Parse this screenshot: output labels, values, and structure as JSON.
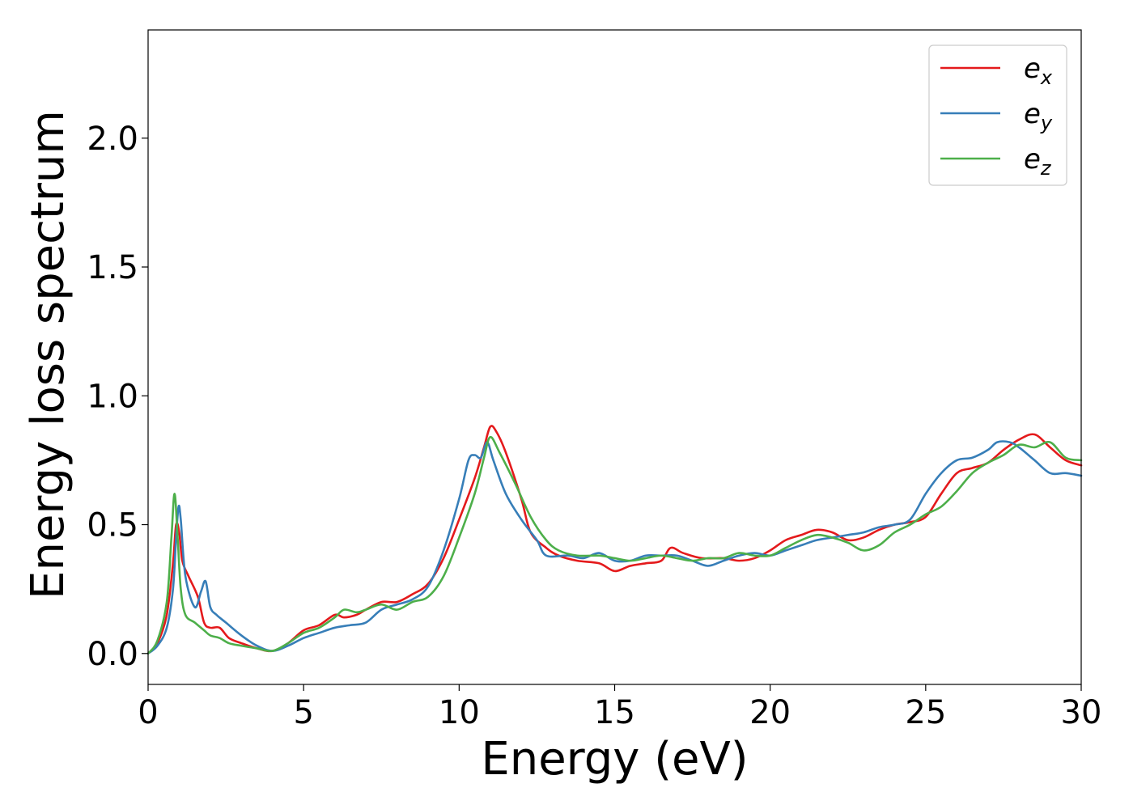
{
  "chart_data": {
    "type": "line",
    "xlabel": "Energy (eV)",
    "ylabel": "Energy loss spectrum",
    "xlim": [
      0,
      30
    ],
    "ylim": [
      -0.12,
      2.42
    ],
    "xticks": [
      0,
      5,
      10,
      15,
      20,
      25,
      30
    ],
    "xtick_labels": [
      "0",
      "5",
      "10",
      "15",
      "20",
      "25",
      "30"
    ],
    "yticks": [
      0.0,
      0.5,
      1.0,
      1.5,
      2.0
    ],
    "ytick_labels": [
      "0.0",
      "0.5",
      "1.0",
      "1.5",
      "2.0"
    ],
    "grid": false,
    "legend_position": "top-right",
    "series": [
      {
        "name": "e",
        "subscript": "x",
        "color": "#e41a1c",
        "x": [
          0,
          0.3,
          0.6,
          0.8,
          0.9,
          1.0,
          1.1,
          1.3,
          1.6,
          1.8,
          2.0,
          2.3,
          2.6,
          3.0,
          3.5,
          4.0,
          4.5,
          5.0,
          5.5,
          6.0,
          6.3,
          6.7,
          7.0,
          7.5,
          8.0,
          8.5,
          9.0,
          9.5,
          10.0,
          10.5,
          10.8,
          11.0,
          11.2,
          11.5,
          12.0,
          12.3,
          12.8,
          13.2,
          13.8,
          14.5,
          15.0,
          15.5,
          16.0,
          16.5,
          16.8,
          17.2,
          17.8,
          18.5,
          19.0,
          19.5,
          20.0,
          20.5,
          21.0,
          21.5,
          22.0,
          22.5,
          23.0,
          23.5,
          24.0,
          24.5,
          25.0,
          25.5,
          26.0,
          26.5,
          27.0,
          27.5,
          28.0,
          28.5,
          29.0,
          29.5,
          30.0
        ],
        "y": [
          0.0,
          0.04,
          0.15,
          0.35,
          0.5,
          0.47,
          0.36,
          0.3,
          0.22,
          0.12,
          0.1,
          0.1,
          0.06,
          0.04,
          0.02,
          0.01,
          0.04,
          0.09,
          0.11,
          0.15,
          0.14,
          0.15,
          0.17,
          0.2,
          0.2,
          0.23,
          0.27,
          0.37,
          0.52,
          0.68,
          0.8,
          0.88,
          0.86,
          0.78,
          0.6,
          0.47,
          0.41,
          0.38,
          0.36,
          0.35,
          0.32,
          0.34,
          0.35,
          0.36,
          0.41,
          0.39,
          0.37,
          0.37,
          0.36,
          0.37,
          0.4,
          0.44,
          0.46,
          0.48,
          0.47,
          0.44,
          0.45,
          0.48,
          0.5,
          0.51,
          0.53,
          0.62,
          0.7,
          0.72,
          0.74,
          0.79,
          0.83,
          0.85,
          0.8,
          0.75,
          0.73
        ]
      },
      {
        "name": "e",
        "subscript": "y",
        "color": "#377eb8",
        "x": [
          0,
          0.3,
          0.6,
          0.8,
          0.9,
          0.98,
          1.05,
          1.2,
          1.5,
          1.7,
          1.85,
          2.0,
          2.2,
          2.5,
          3.0,
          3.5,
          4.0,
          4.5,
          5.0,
          5.5,
          6.0,
          6.5,
          7.0,
          7.5,
          8.0,
          8.5,
          9.0,
          9.5,
          10.0,
          10.3,
          10.5,
          10.7,
          10.9,
          11.1,
          11.5,
          12.0,
          12.5,
          12.8,
          13.5,
          14.0,
          14.5,
          15.0,
          15.5,
          16.0,
          16.5,
          17.0,
          17.5,
          18.0,
          18.5,
          19.0,
          19.5,
          20.0,
          20.5,
          21.0,
          21.5,
          22.0,
          22.5,
          23.0,
          23.5,
          24.0,
          24.5,
          25.0,
          25.5,
          26.0,
          26.5,
          27.0,
          27.3,
          27.7,
          28.0,
          28.5,
          29.0,
          29.5,
          30.0
        ],
        "y": [
          0.0,
          0.03,
          0.1,
          0.25,
          0.45,
          0.57,
          0.52,
          0.3,
          0.18,
          0.24,
          0.28,
          0.18,
          0.15,
          0.12,
          0.07,
          0.03,
          0.01,
          0.03,
          0.06,
          0.08,
          0.1,
          0.11,
          0.12,
          0.17,
          0.19,
          0.21,
          0.26,
          0.4,
          0.6,
          0.75,
          0.77,
          0.76,
          0.82,
          0.75,
          0.62,
          0.52,
          0.44,
          0.38,
          0.38,
          0.37,
          0.39,
          0.36,
          0.36,
          0.38,
          0.38,
          0.38,
          0.36,
          0.34,
          0.36,
          0.38,
          0.39,
          0.38,
          0.4,
          0.42,
          0.44,
          0.45,
          0.46,
          0.47,
          0.49,
          0.5,
          0.52,
          0.62,
          0.7,
          0.75,
          0.76,
          0.79,
          0.82,
          0.82,
          0.8,
          0.75,
          0.7,
          0.7,
          0.69
        ]
      },
      {
        "name": "e",
        "subscript": "z",
        "color": "#4daf4a",
        "x": [
          0,
          0.3,
          0.6,
          0.75,
          0.85,
          0.95,
          1.05,
          1.2,
          1.5,
          1.8,
          2.0,
          2.3,
          2.6,
          3.0,
          3.5,
          4.0,
          4.5,
          5.0,
          5.5,
          6.0,
          6.3,
          6.7,
          7.0,
          7.5,
          8.0,
          8.5,
          9.0,
          9.5,
          10.0,
          10.5,
          10.8,
          11.0,
          11.3,
          11.8,
          12.3,
          12.8,
          13.2,
          13.8,
          14.5,
          15.0,
          15.5,
          16.0,
          16.5,
          17.0,
          17.5,
          18.0,
          18.5,
          19.0,
          19.5,
          20.0,
          20.5,
          21.0,
          21.5,
          22.0,
          22.5,
          23.0,
          23.5,
          24.0,
          24.5,
          25.0,
          25.5,
          26.0,
          26.5,
          27.0,
          27.5,
          28.0,
          28.5,
          29.0,
          29.5,
          30.0
        ],
        "y": [
          0.0,
          0.05,
          0.2,
          0.45,
          0.62,
          0.45,
          0.25,
          0.15,
          0.12,
          0.09,
          0.07,
          0.06,
          0.04,
          0.03,
          0.02,
          0.01,
          0.04,
          0.08,
          0.1,
          0.14,
          0.17,
          0.16,
          0.17,
          0.19,
          0.17,
          0.2,
          0.22,
          0.3,
          0.45,
          0.62,
          0.76,
          0.84,
          0.78,
          0.66,
          0.53,
          0.44,
          0.4,
          0.38,
          0.38,
          0.37,
          0.36,
          0.37,
          0.38,
          0.37,
          0.36,
          0.37,
          0.37,
          0.39,
          0.38,
          0.38,
          0.41,
          0.44,
          0.46,
          0.45,
          0.43,
          0.4,
          0.42,
          0.47,
          0.5,
          0.54,
          0.57,
          0.63,
          0.7,
          0.74,
          0.77,
          0.81,
          0.8,
          0.82,
          0.76,
          0.75
        ]
      }
    ]
  }
}
